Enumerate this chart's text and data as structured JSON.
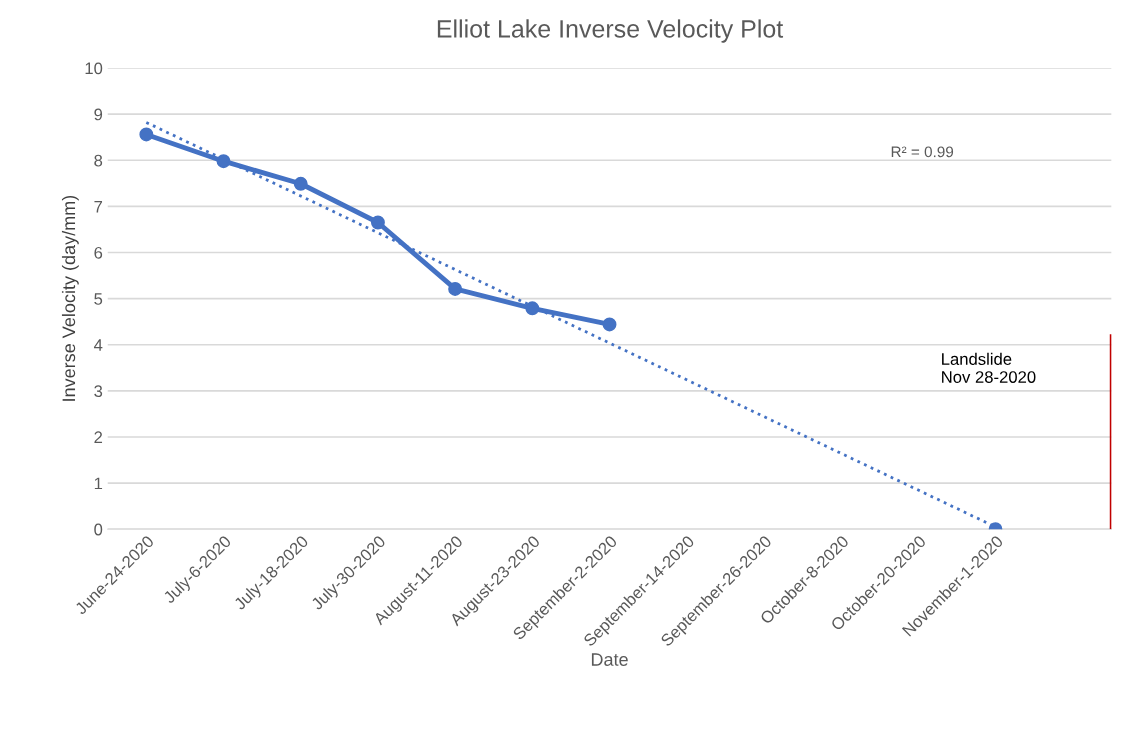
{
  "chart_data": {
    "type": "line",
    "title": "Elliot Lake Inverse Velocity Plot",
    "xlabel": "Date",
    "ylabel": "Inverse Velocity (day/mm)",
    "categories": [
      "June-24-2020",
      "July-6-2020",
      "July-18-2020",
      "July-30-2020",
      "August-11-2020",
      "August-23-2020",
      "September-2-2020",
      "September-14-2020",
      "September-26-2020",
      "October-8-2020",
      "October-20-2020",
      "November-1-2020",
      null
    ],
    "ylim": [
      0,
      10
    ],
    "yticks": [
      0,
      1,
      2,
      3,
      4,
      5,
      6,
      7,
      8,
      9,
      10
    ],
    "grid": "y",
    "legend": false,
    "series": [
      {
        "color": "#4472c4",
        "marker": "circle",
        "line_style": "solid",
        "values": [
          8.56,
          7.98,
          7.49,
          6.65,
          5.21,
          4.79,
          4.44,
          null,
          null,
          null,
          null,
          null,
          null
        ]
      },
      {
        "type": "scatter",
        "color": "#4472c4",
        "marker": "circle",
        "values": [
          null,
          null,
          null,
          null,
          null,
          null,
          null,
          null,
          null,
          null,
          null,
          0,
          null
        ]
      },
      {
        "color": "#4472c4",
        "line_style": "dotted",
        "marker": "none",
        "values": [
          8.82,
          null,
          null,
          null,
          null,
          null,
          null,
          null,
          null,
          null,
          null,
          0.05,
          null
        ]
      },
      {
        "type": "bar",
        "color": "#c00000",
        "values": [
          null,
          null,
          null,
          null,
          null,
          null,
          null,
          null,
          null,
          null,
          null,
          null,
          4.23
        ]
      }
    ],
    "annotations": [
      "R² = 0.99",
      "Landslide\nNov 28-2020"
    ]
  }
}
